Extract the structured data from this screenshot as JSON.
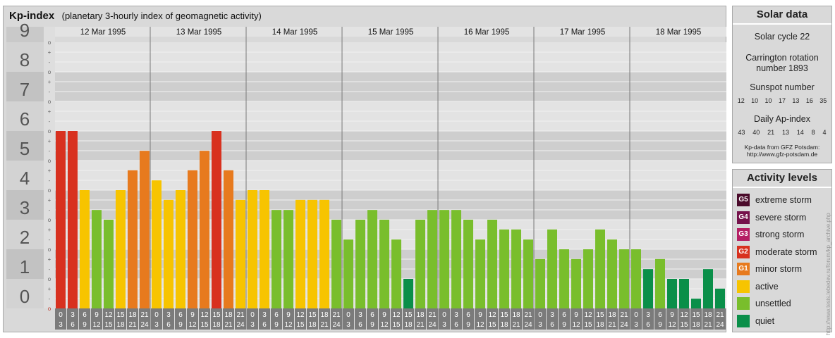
{
  "header": {
    "title": "Kp-index",
    "subtitle": "(planetary 3-hourly index of geomagnetic activity)"
  },
  "chart_data": {
    "type": "bar",
    "title": "Kp-index",
    "subtitle": "(planetary 3-hourly index of geomagnetic activity)",
    "ylim": [
      0,
      9
    ],
    "y_ticks": [
      "0",
      "1",
      "2",
      "3",
      "4",
      "5",
      "6",
      "7",
      "8",
      "9"
    ],
    "y_minor_ticks": [
      "o",
      "+",
      "-"
    ],
    "grid": true,
    "days": [
      "12 Mar 1995",
      "13 Mar 1995",
      "14 Mar 1995",
      "15 Mar 1995",
      "16 Mar 1995",
      "17 Mar 1995",
      "18 Mar 1995"
    ],
    "interval_start": [
      "0",
      "3",
      "6",
      "9",
      "12",
      "15",
      "18",
      "21"
    ],
    "interval_end": [
      "3",
      "6",
      "9",
      "12",
      "15",
      "18",
      "21",
      "24"
    ],
    "values": [
      6,
      6,
      4,
      3.33,
      3,
      4,
      4.67,
      5.33,
      4.33,
      3.67,
      4,
      4.67,
      5.33,
      6,
      4.67,
      3.67,
      4,
      4,
      3.33,
      3.33,
      3.67,
      3.67,
      3.67,
      3,
      2.33,
      3,
      3.33,
      3,
      2.33,
      1,
      3,
      3.33,
      3.33,
      3.33,
      3,
      2.33,
      3,
      2.67,
      2.67,
      2.33,
      1.67,
      2.67,
      2,
      1.67,
      2,
      2.67,
      2.33,
      2,
      2,
      1.33,
      1.67,
      1,
      1,
      0.33,
      1.33,
      0.67
    ],
    "levels": [
      {
        "code": "G5",
        "label": "extreme storm",
        "color": "#4a0a2a"
      },
      {
        "code": "G4",
        "label": "severe storm",
        "color": "#75124b"
      },
      {
        "code": "G3",
        "label": "strong storm",
        "color": "#b51e63"
      },
      {
        "code": "G2",
        "label": "moderate storm",
        "color": "#d8311f"
      },
      {
        "code": "G1",
        "label": "minor storm",
        "color": "#e77a1e"
      },
      {
        "code": "",
        "label": "active",
        "color": "#f7c400"
      },
      {
        "code": "",
        "label": "unsettled",
        "color": "#79be2c"
      },
      {
        "code": "",
        "label": "quiet",
        "color": "#0a8f49"
      }
    ]
  },
  "solar": {
    "title": "Solar data",
    "cycle": "Solar cycle 22",
    "carrington_line1": "Carrington rotation",
    "carrington_line2": "number 1893",
    "sunspot_label": "Sunspot number",
    "sunspot_values": [
      "12",
      "10",
      "10",
      "17",
      "13",
      "16",
      "35"
    ],
    "ap_label": "Daily Ap-index",
    "ap_values": [
      "43",
      "40",
      "21",
      "13",
      "14",
      "8",
      "4"
    ],
    "source_line1": "Kp-data from GFZ Potsdam:",
    "source_line2": "http://www.gfz-potsdam.de"
  },
  "activity": {
    "title": "Activity levels"
  },
  "watermark": "http://www.tesis.lebedev.ru/forum/kp_archive.php"
}
